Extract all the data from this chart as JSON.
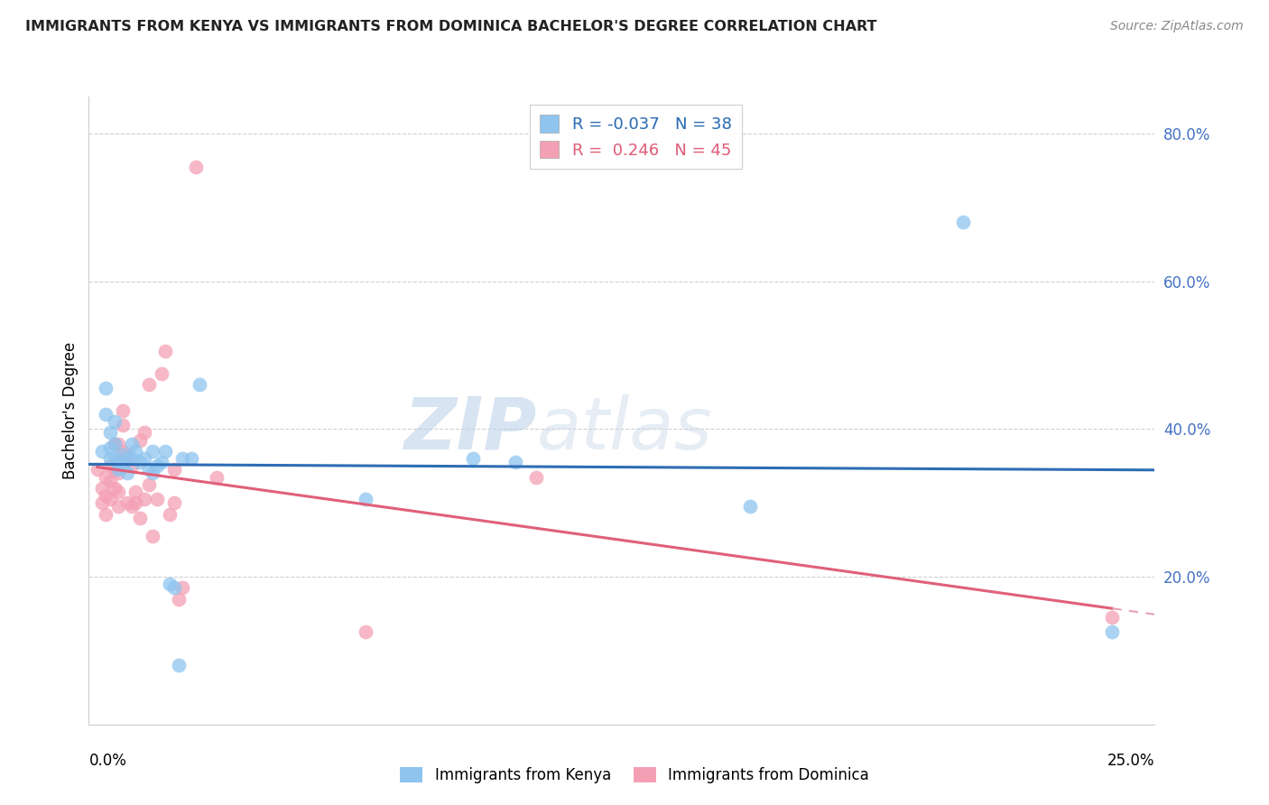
{
  "title": "IMMIGRANTS FROM KENYA VS IMMIGRANTS FROM DOMINICA BACHELOR'S DEGREE CORRELATION CHART",
  "source": "Source: ZipAtlas.com",
  "ylabel": "Bachelor's Degree",
  "watermark": "ZIPatlas",
  "legend": {
    "kenya_R": "-0.037",
    "kenya_N": "38",
    "dominica_R": "0.246",
    "dominica_N": "45"
  },
  "kenya_color": "#8EC4EE",
  "dominica_color": "#F4A0B4",
  "kenya_line_color": "#2E6DB5",
  "dominica_line_color": "#E0607A",
  "dominica_dashed_color": "#E8A0B4",
  "xlim": [
    0.0,
    0.25
  ],
  "ylim": [
    0.0,
    0.85
  ],
  "kenya_x": [
    0.003,
    0.004,
    0.004,
    0.005,
    0.005,
    0.005,
    0.006,
    0.006,
    0.006,
    0.007,
    0.007,
    0.008,
    0.008,
    0.009,
    0.009,
    0.01,
    0.01,
    0.011,
    0.012,
    0.013,
    0.014,
    0.015,
    0.015,
    0.016,
    0.017,
    0.018,
    0.019,
    0.02,
    0.021,
    0.022,
    0.024,
    0.026,
    0.065,
    0.09,
    0.1,
    0.155,
    0.205,
    0.24
  ],
  "kenya_y": [
    0.37,
    0.42,
    0.455,
    0.36,
    0.375,
    0.395,
    0.36,
    0.38,
    0.41,
    0.355,
    0.345,
    0.365,
    0.35,
    0.34,
    0.36,
    0.36,
    0.38,
    0.37,
    0.355,
    0.36,
    0.345,
    0.34,
    0.37,
    0.35,
    0.355,
    0.37,
    0.19,
    0.185,
    0.08,
    0.36,
    0.36,
    0.46,
    0.305,
    0.36,
    0.355,
    0.295,
    0.68,
    0.125
  ],
  "dominica_x": [
    0.002,
    0.003,
    0.003,
    0.004,
    0.004,
    0.004,
    0.005,
    0.005,
    0.005,
    0.006,
    0.006,
    0.006,
    0.007,
    0.007,
    0.007,
    0.007,
    0.008,
    0.008,
    0.008,
    0.009,
    0.009,
    0.01,
    0.01,
    0.011,
    0.011,
    0.012,
    0.012,
    0.013,
    0.013,
    0.014,
    0.014,
    0.015,
    0.016,
    0.017,
    0.018,
    0.019,
    0.02,
    0.02,
    0.021,
    0.022,
    0.025,
    0.03,
    0.065,
    0.105,
    0.24
  ],
  "dominica_y": [
    0.345,
    0.32,
    0.3,
    0.31,
    0.335,
    0.285,
    0.35,
    0.305,
    0.33,
    0.38,
    0.32,
    0.345,
    0.38,
    0.34,
    0.315,
    0.295,
    0.37,
    0.405,
    0.425,
    0.365,
    0.3,
    0.295,
    0.35,
    0.315,
    0.3,
    0.385,
    0.28,
    0.395,
    0.305,
    0.325,
    0.46,
    0.255,
    0.305,
    0.475,
    0.505,
    0.285,
    0.3,
    0.345,
    0.17,
    0.185,
    0.755,
    0.335,
    0.125,
    0.335,
    0.145
  ]
}
